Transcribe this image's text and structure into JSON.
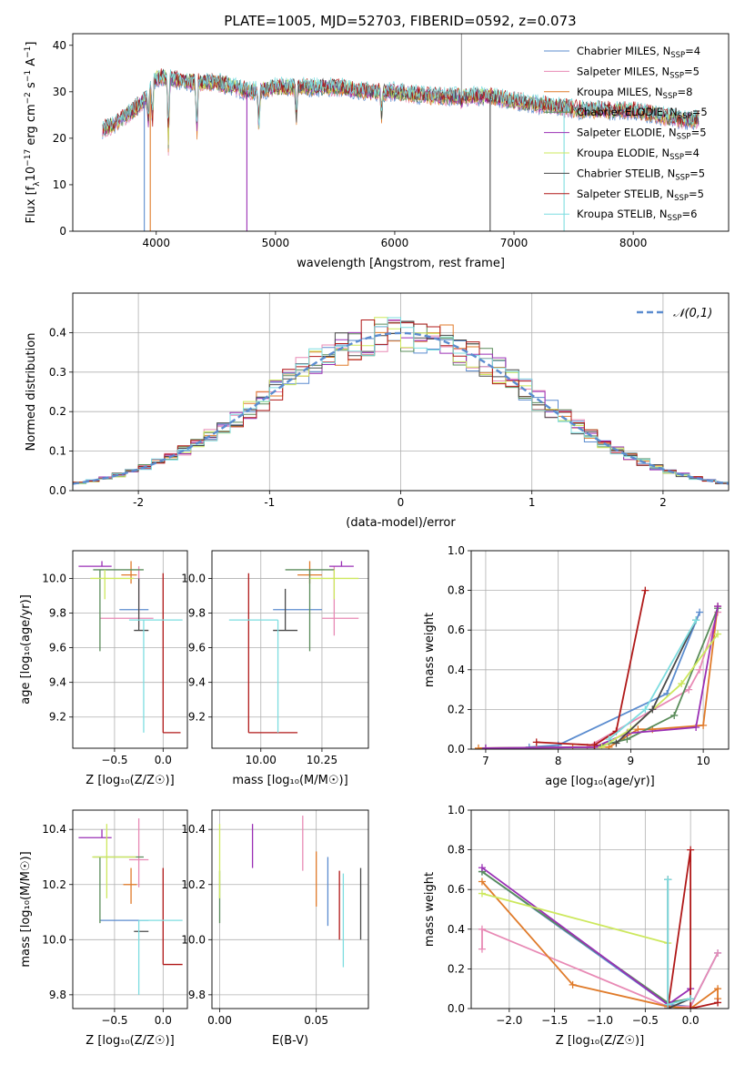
{
  "title": "PLATE=1005, MJD=52703, FIBERID=0592, z=0.073",
  "colors": {
    "Chabrier MILES": "#5b8ccf",
    "Salpeter MILES": "#e88ab5",
    "Kroupa MILES": "#e07b2a",
    "Chabrier ELODIE": "#5a8c5a",
    "Salpeter ELODIE": "#9a2fb5",
    "Kroupa ELODIE": "#cde85e",
    "Chabrier STELIB": "#4a4a4a",
    "Salpeter STELIB": "#b01818",
    "Kroupa STELIB": "#7ddde0"
  },
  "chart_data": [
    {
      "id": "spectrum",
      "type": "line",
      "xlabel": "wavelength [Angstrom, rest frame]",
      "ylabel_pre": "Flux [f",
      "ylabel_sub": "λ",
      "ylabel_mid": "10",
      "ylabel_sup": "−17",
      "ylabel_mid2": " erg cm",
      "ylabel_sup2": "−2",
      "ylabel_mid3": " s",
      "ylabel_sup3": "−1",
      "ylabel_post": " A",
      "ylabel_sup4": "−1",
      "ylabel_end": "]",
      "xlim": [
        3300,
        8800
      ],
      "ylim": [
        0,
        42.5
      ],
      "xticks": [
        4000,
        5000,
        6000,
        7000,
        8000
      ],
      "yticks": [
        0,
        10,
        20,
        30,
        40
      ],
      "legend_position": "top-right",
      "series": [
        {
          "name": "Chabrier MILES, N",
          "sub": "SSP",
          "suffix": "=4"
        },
        {
          "name": "Salpeter MILES, N",
          "sub": "SSP",
          "suffix": "=5"
        },
        {
          "name": "Kroupa MILES, N",
          "sub": "SSP",
          "suffix": "=8"
        },
        {
          "name": "Chabrier ELODIE, N",
          "sub": "SSP",
          "suffix": "=5"
        },
        {
          "name": "Salpeter ELODIE, N",
          "sub": "SSP",
          "suffix": "=5"
        },
        {
          "name": "Kroupa ELODIE, N",
          "sub": "SSP",
          "suffix": "=4"
        },
        {
          "name": "Chabrier STELIB, N",
          "sub": "SSP",
          "suffix": "=5"
        },
        {
          "name": "Salpeter STELIB, N",
          "sub": "SSP",
          "suffix": "=5"
        },
        {
          "name": "Kroupa STELIB, N",
          "sub": "SSP",
          "suffix": "=6"
        }
      ],
      "continuum_x": [
        3550,
        3650,
        3800,
        3900,
        4000,
        4100,
        4300,
        4500,
        4800,
        5000,
        5200,
        5500,
        5800,
        6000,
        6300,
        6600,
        6800,
        7000,
        7300,
        7600,
        8000,
        8400,
        8550
      ],
      "continuum_y": [
        22,
        23,
        26,
        28,
        33,
        33,
        32,
        32,
        30,
        31,
        31,
        31,
        30,
        30,
        29,
        29,
        29,
        28,
        27,
        26,
        26,
        24,
        24
      ],
      "absorption_dips": [
        [
          3934,
          8
        ],
        [
          3968,
          10
        ],
        [
          4102,
          16
        ],
        [
          4340,
          14
        ],
        [
          4861,
          10
        ],
        [
          5175,
          8
        ],
        [
          5890,
          6
        ],
        [
          6563,
          2
        ]
      ],
      "spikes": [
        [
          3900,
          -60
        ],
        [
          3950,
          -48
        ],
        [
          4760,
          -80
        ],
        [
          6800,
          -80
        ],
        [
          7420,
          -60
        ],
        [
          6560,
          95
        ]
      ]
    },
    {
      "id": "residuals",
      "type": "bar",
      "xlabel": "(data-model)/error",
      "ylabel": "Normed distribution",
      "xlim": [
        -2.5,
        2.5
      ],
      "ylim": [
        0,
        0.5
      ],
      "xticks": [
        -2,
        -1,
        0,
        1,
        2
      ],
      "yticks": [
        0.0,
        0.1,
        0.2,
        0.3,
        0.4
      ],
      "bin_width": 0.1,
      "legend_label": "𝒩(0,1)",
      "legend_position": "top-right",
      "grid": true
    },
    {
      "id": "age_vs_Z",
      "type": "scatter",
      "xlabel": "Z [log₁₀(Z/Z☉)]",
      "ylabel": "age  [log₁₀(age/yr)]",
      "xlim": [
        -0.93,
        0.25
      ],
      "ylim": [
        9.02,
        10.16
      ],
      "xticks": [
        -0.5,
        0.0
      ],
      "xtick_labels": [
        "−0.5",
        "0.0"
      ],
      "yticks": [
        9.2,
        9.4,
        9.6,
        9.8,
        10.0
      ],
      "grid": true,
      "points": [
        {
          "s": "Chabrier MILES",
          "x": -0.25,
          "y": 9.82,
          "xe": [
            0.2,
            0.1
          ],
          "ye": [
            0.0,
            0.0
          ]
        },
        {
          "s": "Salpeter MILES",
          "x": -0.25,
          "y": 9.77,
          "xe": [
            0.4,
            0.15
          ],
          "ye": [
            0.05,
            0.3
          ]
        },
        {
          "s": "Kroupa MILES",
          "x": -0.33,
          "y": 10.02,
          "xe": [
            0.1,
            0.06
          ],
          "ye": [
            0.05,
            0.08
          ]
        },
        {
          "s": "Chabrier ELODIE",
          "x": -0.65,
          "y": 10.05,
          "xe": [
            0.07,
            0.45
          ],
          "ye": [
            0.47,
            0.0
          ]
        },
        {
          "s": "Salpeter ELODIE",
          "x": -0.63,
          "y": 10.07,
          "xe": [
            0.24,
            0.1
          ],
          "ye": [
            0.0,
            0.03
          ]
        },
        {
          "s": "Kroupa ELODIE",
          "x": -0.6,
          "y": 10.0,
          "xe": [
            0.15,
            0.3
          ],
          "ye": [
            0.12,
            0.05
          ]
        },
        {
          "s": "Chabrier STELIB",
          "x": -0.25,
          "y": 9.7,
          "xe": [
            0.05,
            0.1
          ],
          "ye": [
            0.0,
            0.3
          ]
        },
        {
          "s": "Salpeter STELIB",
          "x": 0.0,
          "y": 9.11,
          "xe": [
            0.0,
            0.18
          ],
          "ye": [
            0.0,
            0.92
          ]
        },
        {
          "s": "Kroupa STELIB",
          "x": -0.2,
          "y": 9.76,
          "xe": [
            0.15,
            0.4
          ],
          "ye": [
            0.65,
            0.0
          ]
        }
      ]
    },
    {
      "id": "age_vs_mass",
      "type": "scatter",
      "xlabel": "mass [log₁₀(M/M☉)]",
      "xlim": [
        9.8,
        10.44
      ],
      "ylim": [
        9.02,
        10.16
      ],
      "xticks": [
        10.0,
        10.25
      ],
      "xtick_labels": [
        "10.00",
        "10.25"
      ],
      "yticks": [
        9.2,
        9.4,
        9.6,
        9.8,
        10.0
      ],
      "grid": true,
      "points": [
        {
          "s": "Chabrier MILES",
          "x": 10.15,
          "y": 9.82,
          "xe": [
            0.1,
            0.1
          ],
          "ye": [
            0.0,
            0.0
          ]
        },
        {
          "s": "Salpeter MILES",
          "x": 10.3,
          "y": 9.77,
          "xe": [
            0.05,
            0.1
          ],
          "ye": [
            0.1,
            0.3
          ]
        },
        {
          "s": "Kroupa MILES",
          "x": 10.2,
          "y": 10.02,
          "xe": [
            0.05,
            0.05
          ],
          "ye": [
            0.05,
            0.08
          ]
        },
        {
          "s": "Chabrier ELODIE",
          "x": 10.2,
          "y": 10.05,
          "xe": [
            0.1,
            0.1
          ],
          "ye": [
            0.47,
            0.0
          ]
        },
        {
          "s": "Salpeter ELODIE",
          "x": 10.33,
          "y": 10.07,
          "xe": [
            0.05,
            0.05
          ],
          "ye": [
            0.0,
            0.03
          ]
        },
        {
          "s": "Kroupa ELODIE",
          "x": 10.3,
          "y": 10.0,
          "xe": [
            0.1,
            0.1
          ],
          "ye": [
            0.12,
            0.05
          ]
        },
        {
          "s": "Chabrier STELIB",
          "x": 10.1,
          "y": 9.7,
          "xe": [
            0.05,
            0.05
          ],
          "ye": [
            0.0,
            0.24
          ]
        },
        {
          "s": "Salpeter STELIB",
          "x": 9.95,
          "y": 9.11,
          "xe": [
            0.0,
            0.2
          ],
          "ye": [
            0.0,
            0.92
          ]
        },
        {
          "s": "Kroupa STELIB",
          "x": 10.07,
          "y": 9.76,
          "xe": [
            0.2,
            0.0
          ],
          "ye": [
            0.65,
            0.0
          ]
        }
      ]
    },
    {
      "id": "mass_weight_vs_age",
      "type": "line",
      "xlabel": "age  [log₁₀(age/yr)]",
      "ylabel": "mass weight",
      "xlim": [
        6.8,
        10.35
      ],
      "ylim": [
        0,
        1.0
      ],
      "xticks": [
        7,
        8,
        9,
        10
      ],
      "yticks": [
        0.0,
        0.2,
        0.4,
        0.6,
        0.8,
        1.0
      ],
      "grid": true,
      "series": [
        {
          "s": "Chabrier MILES",
          "x": [
            7.6,
            8.0,
            9.5,
            9.95
          ],
          "y": [
            0.01,
            0.02,
            0.28,
            0.69
          ]
        },
        {
          "s": "Salpeter MILES",
          "x": [
            7.7,
            8.4,
            9.8,
            9.95,
            10.2
          ],
          "y": [
            0.005,
            0.01,
            0.3,
            0.4,
            0.69
          ]
        },
        {
          "s": "Kroupa MILES",
          "x": [
            6.9,
            8.2,
            8.7,
            9.1,
            9.3,
            10.0,
            10.2
          ],
          "y": [
            0.005,
            0.01,
            0.01,
            0.1,
            0.1,
            0.12,
            0.72
          ]
        },
        {
          "s": "Chabrier ELODIE",
          "x": [
            7.0,
            8.5,
            8.95,
            9.6,
            10.2
          ],
          "y": [
            0.005,
            0.01,
            0.05,
            0.17,
            0.71
          ]
        },
        {
          "s": "Salpeter ELODIE",
          "x": [
            7.0,
            8.5,
            8.95,
            9.9,
            10.2
          ],
          "y": [
            0.005,
            0.01,
            0.08,
            0.11,
            0.72
          ]
        },
        {
          "s": "Kroupa ELODIE",
          "x": [
            8.6,
            9.0,
            9.7,
            10.2
          ],
          "y": [
            0.01,
            0.1,
            0.33,
            0.58
          ]
        },
        {
          "s": "Chabrier STELIB",
          "x": [
            8.8,
            9.3,
            9.9
          ],
          "y": [
            0.03,
            0.2,
            0.65
          ]
        },
        {
          "s": "Salpeter STELIB",
          "x": [
            7.7,
            8.5,
            8.8,
            9.2
          ],
          "y": [
            0.035,
            0.02,
            0.09,
            0.8
          ]
        },
        {
          "s": "Kroupa STELIB",
          "x": [
            8.7,
            9.2,
            9.9
          ],
          "y": [
            0.05,
            0.2,
            0.65
          ]
        }
      ]
    },
    {
      "id": "mass_vs_Z",
      "type": "scatter",
      "xlabel": "Z [log₁₀(Z/Z☉)]",
      "ylabel": "mass [log₁₀(M/M☉)]",
      "xlim": [
        -0.93,
        0.25
      ],
      "ylim": [
        9.75,
        10.47
      ],
      "xticks": [
        -0.5,
        0.0
      ],
      "xtick_labels": [
        "−0.5",
        "0.0"
      ],
      "yticks": [
        9.8,
        10.0,
        10.2,
        10.4
      ],
      "grid": true,
      "points": [
        {
          "s": "Chabrier MILES",
          "x": -0.25,
          "y": 10.07,
          "xe": [
            0.4,
            0.1
          ],
          "ye": [
            0.0,
            0.0
          ]
        },
        {
          "s": "Salpeter MILES",
          "x": -0.25,
          "y": 10.29,
          "xe": [
            0.1,
            0.1
          ],
          "ye": [
            0.1,
            0.15
          ]
        },
        {
          "s": "Kroupa MILES",
          "x": -0.33,
          "y": 10.2,
          "xe": [
            0.08,
            0.06
          ],
          "ye": [
            0.07,
            0.06
          ]
        },
        {
          "s": "Chabrier ELODIE",
          "x": -0.65,
          "y": 10.3,
          "xe": [
            0.07,
            0.45
          ],
          "ye": [
            0.24,
            0.0
          ]
        },
        {
          "s": "Salpeter ELODIE",
          "x": -0.63,
          "y": 10.37,
          "xe": [
            0.24,
            0.1
          ],
          "ye": [
            0.0,
            0.03
          ]
        },
        {
          "s": "Kroupa ELODIE",
          "x": -0.58,
          "y": 10.3,
          "xe": [
            0.15,
            0.3
          ],
          "ye": [
            0.15,
            0.12
          ]
        },
        {
          "s": "Chabrier STELIB",
          "x": -0.25,
          "y": 10.03,
          "xe": [
            0.05,
            0.1
          ],
          "ye": [
            0.0,
            0.0
          ]
        },
        {
          "s": "Salpeter STELIB",
          "x": 0.0,
          "y": 9.91,
          "xe": [
            0.0,
            0.2
          ],
          "ye": [
            0.0,
            0.35
          ]
        },
        {
          "s": "Kroupa STELIB",
          "x": -0.25,
          "y": 10.07,
          "xe": [
            0.0,
            0.45
          ],
          "ye": [
            0.27,
            0.0
          ]
        }
      ]
    },
    {
      "id": "mass_vs_EBV",
      "type": "scatter",
      "xlabel": "E(B-V)",
      "xlim": [
        -0.004,
        0.077
      ],
      "ylim": [
        9.75,
        10.47
      ],
      "xticks": [
        0.0,
        0.05
      ],
      "xtick_labels": [
        "0.00",
        "0.05"
      ],
      "yticks": [
        9.8,
        10.0,
        10.2,
        10.4
      ],
      "grid": true,
      "points": [
        {
          "s": "Chabrier MILES",
          "x": 0.056,
          "y": 10.17,
          "xe": [
            0.0,
            0.0
          ],
          "ye": [
            0.12,
            0.13
          ]
        },
        {
          "s": "Salpeter MILES",
          "x": 0.043,
          "y": 10.35,
          "xe": [
            0.0,
            0.0
          ],
          "ye": [
            0.1,
            0.1
          ]
        },
        {
          "s": "Kroupa MILES",
          "x": 0.05,
          "y": 10.22,
          "xe": [
            0.0,
            0.0
          ],
          "ye": [
            0.1,
            0.1
          ]
        },
        {
          "s": "Chabrier ELODIE",
          "x": 0.0,
          "y": 10.25,
          "xe": [
            0.0,
            0.0
          ],
          "ye": [
            0.19,
            0.0
          ]
        },
        {
          "s": "Salpeter ELODIE",
          "x": 0.017,
          "y": 10.34,
          "xe": [
            0.0,
            0.0
          ],
          "ye": [
            0.08,
            0.08
          ]
        },
        {
          "s": "Kroupa ELODIE",
          "x": 0.0,
          "y": 10.3,
          "xe": [
            0.0,
            0.0
          ],
          "ye": [
            0.15,
            0.12
          ]
        },
        {
          "s": "Chabrier STELIB",
          "x": 0.073,
          "y": 10.13,
          "xe": [
            0.0,
            0.0
          ],
          "ye": [
            0.13,
            0.13
          ]
        },
        {
          "s": "Salpeter STELIB",
          "x": 0.062,
          "y": 10.15,
          "xe": [
            0.0,
            0.0
          ],
          "ye": [
            0.15,
            0.1
          ]
        },
        {
          "s": "Kroupa STELIB",
          "x": 0.064,
          "y": 10.07,
          "xe": [
            0.0,
            0.0
          ],
          "ye": [
            0.17,
            0.17
          ]
        }
      ]
    },
    {
      "id": "mass_weight_vs_Z",
      "type": "line",
      "xlabel": "Z [log₁₀(Z/Z☉)]",
      "ylabel": "mass weight",
      "xlim": [
        -2.42,
        0.42
      ],
      "ylim": [
        0,
        1.0
      ],
      "xticks": [
        -2.0,
        -1.5,
        -1.0,
        -0.5,
        0.0
      ],
      "xtick_labels": [
        "−2.0",
        "−1.5",
        "−1.0",
        "−0.5",
        "0.0"
      ],
      "yticks": [
        0.0,
        0.2,
        0.4,
        0.6,
        0.8,
        1.0
      ],
      "grid": true,
      "series": [
        {
          "s": "Chabrier MILES",
          "x": [
            -2.3,
            -0.25,
            0.0,
            0.3
          ],
          "y": [
            0.69,
            0.02,
            0.01,
            0.28
          ]
        },
        {
          "s": "Salpeter MILES",
          "x": [
            -2.3,
            -2.3,
            -0.25,
            0.0,
            0.3
          ],
          "y": [
            0.3,
            0.4,
            0.01,
            0.01,
            0.28
          ]
        },
        {
          "s": "Kroupa MILES",
          "x": [
            -2.3,
            -1.3,
            -0.25,
            0.0,
            0.3,
            0.3
          ],
          "y": [
            0.64,
            0.12,
            0.01,
            0.0,
            0.1,
            0.05
          ]
        },
        {
          "s": "Chabrier ELODIE",
          "x": [
            -2.3,
            -0.25,
            0.0
          ],
          "y": [
            0.69,
            0.03,
            0.05
          ]
        },
        {
          "s": "Salpeter ELODIE",
          "x": [
            -2.3,
            -0.25,
            0.0
          ],
          "y": [
            0.71,
            0.02,
            0.1
          ]
        },
        {
          "s": "Kroupa ELODIE",
          "x": [
            -2.3,
            -0.25
          ],
          "y": [
            0.58,
            0.33
          ]
        },
        {
          "s": "Chabrier STELIB",
          "x": [
            -0.25,
            -0.25,
            0.0
          ],
          "y": [
            0.65,
            0.0,
            0.05
          ]
        },
        {
          "s": "Salpeter STELIB",
          "x": [
            -0.25,
            0.0,
            0.0,
            0.3
          ],
          "y": [
            0.0,
            0.8,
            0.0,
            0.03
          ]
        },
        {
          "s": "Kroupa STELIB",
          "x": [
            -0.25,
            -0.25,
            0.0
          ],
          "y": [
            0.65,
            0.02,
            0.05
          ]
        }
      ]
    }
  ]
}
